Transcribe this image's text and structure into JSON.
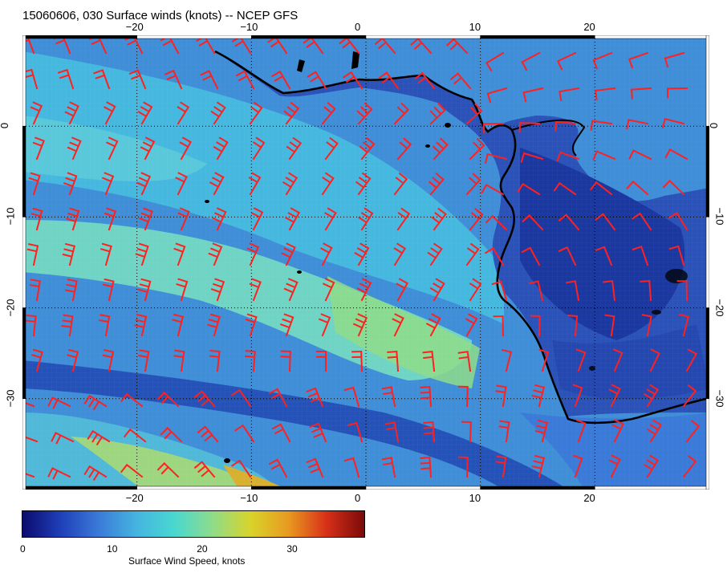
{
  "title": "15060606, 030 Surface winds (knots) -- NCEP GFS",
  "map": {
    "lon_range": [
      -30,
      30
    ],
    "lat_range": [
      -40,
      10
    ],
    "lon_ticks": [
      "−20",
      "−10",
      "0",
      "10",
      "20"
    ],
    "lat_ticks": [
      "0",
      "−10",
      "−20",
      "−30"
    ],
    "coastline_color": "#000000",
    "barb_color": "#ff2020",
    "gridlines": "dotted"
  },
  "colorbar": {
    "title": "Surface Wind Speed, knots",
    "ticks": [
      "0",
      "10",
      "20",
      "30"
    ],
    "range": [
      0,
      38
    ],
    "colors": [
      "#0b0b6e",
      "#1f3fb8",
      "#3a7ad8",
      "#45b4e0",
      "#48d8d0",
      "#8edc8a",
      "#d8d42a",
      "#e89a20",
      "#d83018",
      "#7a0a0a"
    ]
  }
}
